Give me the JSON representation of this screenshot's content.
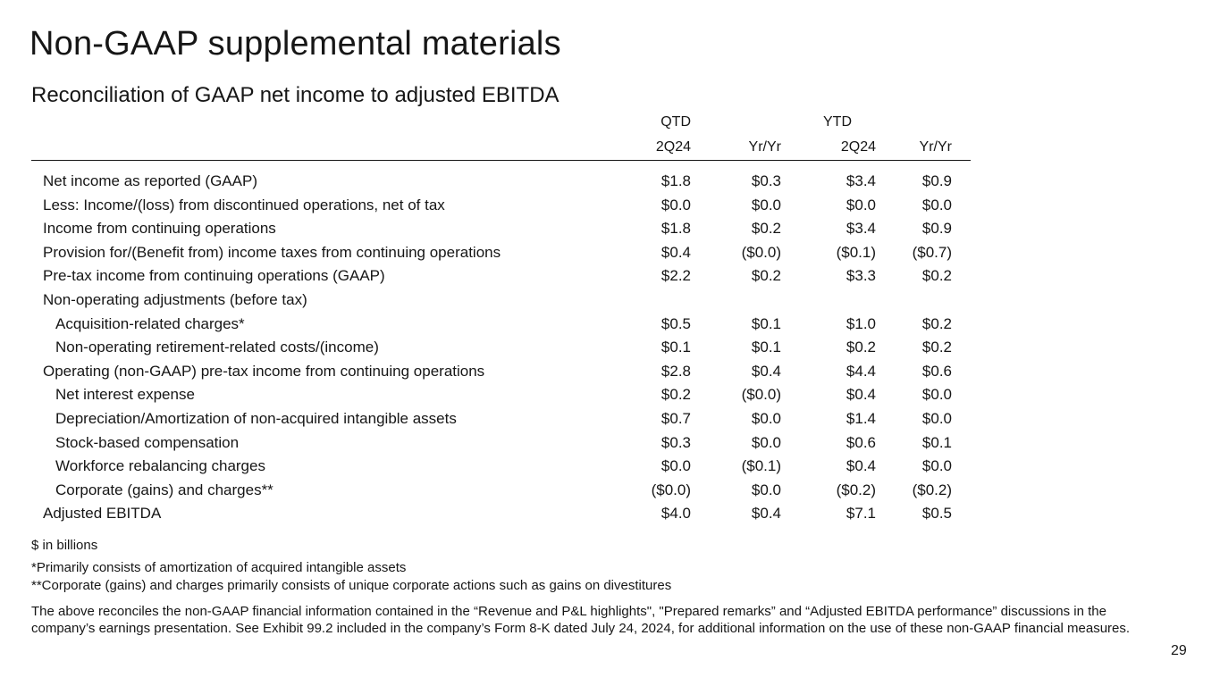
{
  "slide": {
    "title": "Non-GAAP supplemental materials",
    "subtitle": "Reconciliation of GAAP net income to adjusted EBITDA",
    "page_number": "29"
  },
  "table": {
    "group_headers": [
      "QTD",
      "YTD"
    ],
    "column_headers": [
      "2Q24",
      "Yr/Yr",
      "2Q24",
      "Yr/Yr"
    ],
    "rows": [
      {
        "label": "Net income as reported (GAAP)",
        "values": [
          "$1.8",
          "$0.3",
          "$3.4",
          "$0.9"
        ]
      },
      {
        "label": "Less: Income/(loss) from discontinued operations, net of tax",
        "values": [
          "$0.0",
          "$0.0",
          "$0.0",
          "$0.0"
        ]
      },
      {
        "label": "Income from continuing operations",
        "values": [
          "$1.8",
          "$0.2",
          "$3.4",
          "$0.9"
        ]
      },
      {
        "label": "Provision for/(Benefit from) income taxes from continuing operations",
        "values": [
          "$0.4",
          "($0.0)",
          "($0.1)",
          "($0.7)"
        ]
      },
      {
        "label": "Pre-tax income from continuing operations (GAAP)",
        "values": [
          "$2.2",
          "$0.2",
          "$3.3",
          "$0.2"
        ]
      },
      {
        "label": "Non-operating adjustments (before tax)",
        "values": [
          "",
          "",
          "",
          ""
        ]
      },
      {
        "label": "Acquisition-related charges*",
        "values": [
          "$0.5",
          "$0.1",
          "$1.0",
          "$0.2"
        ]
      },
      {
        "label": "Non-operating retirement-related costs/(income)",
        "values": [
          "$0.1",
          "$0.1",
          "$0.2",
          "$0.2"
        ]
      },
      {
        "label": "Operating (non-GAAP) pre-tax income from continuing operations",
        "values": [
          "$2.8",
          "$0.4",
          "$4.4",
          "$0.6"
        ]
      },
      {
        "label": "Net interest expense",
        "values": [
          "$0.2",
          "($0.0)",
          "$0.4",
          "$0.0"
        ]
      },
      {
        "label": "Depreciation/Amortization of non-acquired intangible assets",
        "values": [
          "$0.7",
          "$0.0",
          "$1.4",
          "$0.0"
        ]
      },
      {
        "label": "Stock-based compensation",
        "values": [
          "$0.3",
          "$0.0",
          "$0.6",
          "$0.1"
        ]
      },
      {
        "label": "Workforce rebalancing charges",
        "values": [
          "$0.0",
          "($0.1)",
          "$0.4",
          "$0.0"
        ]
      },
      {
        "label": "Corporate (gains) and charges**",
        "values": [
          "($0.0)",
          "$0.0",
          "($0.2)",
          "($0.2)"
        ]
      },
      {
        "label": "Adjusted EBITDA",
        "values": [
          "$4.0",
          "$0.4",
          "$7.1",
          "$0.5"
        ]
      }
    ]
  },
  "notes": {
    "units": "$ in billions",
    "footnote1": "*Primarily consists of amortization of acquired intangible assets",
    "footnote2": "**Corporate (gains) and charges primarily consists of unique corporate actions such as gains on divestitures",
    "disclaimer": "The above reconciles the non-GAAP financial information contained in the “Revenue and P&L highlights\", \"Prepared remarks” and “Adjusted EBITDA performance” discussions in the company’s earnings presentation. See Exhibit 99.2 included in the company’s Form 8-K dated July 24, 2024, for additional information on the use of these non-GAAP financial measures."
  }
}
